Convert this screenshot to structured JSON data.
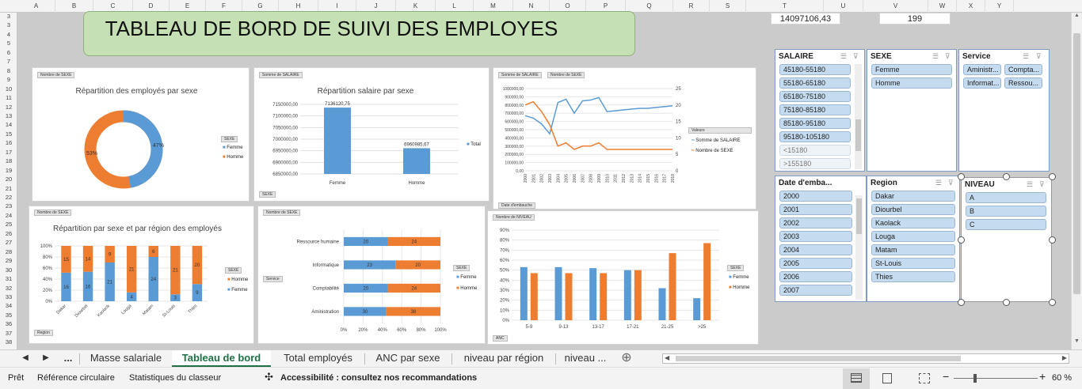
{
  "columns": [
    "A",
    "B",
    "C",
    "D",
    "E",
    "F",
    "G",
    "H",
    "I",
    "J",
    "K",
    "L",
    "M",
    "N",
    "O",
    "P",
    "Q",
    "R",
    "S",
    "T",
    "U",
    "V",
    "W",
    "X",
    "Y"
  ],
  "rows": [
    "3",
    "3",
    "4",
    "5",
    "6",
    "7",
    "8",
    "9",
    "10",
    "11",
    "12",
    "13",
    "14",
    "15",
    "16",
    "17",
    "18",
    "19",
    "20",
    "21",
    "22",
    "23",
    "24",
    "25",
    "26",
    "27",
    "28",
    "29",
    "30",
    "31",
    "32",
    "33",
    "34",
    "35",
    "36",
    "37",
    "38"
  ],
  "cell_values": {
    "t": "14097106,43",
    "v": "199"
  },
  "title": "TABLEAU DE BORD DE SUIVI DES EMPLOYES",
  "chart1": {
    "button": "Nombre de SEXE",
    "title": "Répartition des employés par sexe",
    "legend_title": "SEXE",
    "labels": {
      "femme": "Femme",
      "homme": "Homme"
    },
    "pct_femme": "47%",
    "pct_homme": "53%",
    "colors": {
      "femme": "#5b9bd5",
      "homme": "#ed7d31"
    }
  },
  "chart2": {
    "button": "Somme de SALAIRE",
    "title": "Répartition salaire par sexe",
    "yticks": [
      "7150000,00",
      "7100000,00",
      "7050000,00",
      "7000000,00",
      "6950000,00",
      "6900000,00",
      "6850000,00"
    ],
    "categories": [
      "Femme",
      "Homme"
    ],
    "values": [
      7136120.75,
      6960985.67
    ],
    "value_labels": [
      "7136120,75",
      "6960985,67"
    ],
    "ylim": [
      6850000,
      7150000
    ],
    "legend": "Total",
    "filter": "SEXE"
  },
  "chart3": {
    "buttons": [
      "Somme de SALAIRE",
      "Nombre de SEXE"
    ],
    "yticks_left": [
      "1000000,00",
      "900000,00",
      "800000,00",
      "700000,00",
      "600000,00",
      "500000,00",
      "400000,00",
      "300000,00",
      "200000,00",
      "100000,00",
      "0,00"
    ],
    "yticks_right": [
      "25",
      "20",
      "15",
      "10",
      "5",
      "0"
    ],
    "years": [
      "2000",
      "2001",
      "2002",
      "2003",
      "2004",
      "2005",
      "2006",
      "2007",
      "2008",
      "2009",
      "2010",
      "2011",
      "2012",
      "2013",
      "2014",
      "2015",
      "2016",
      "2017",
      "2018"
    ],
    "salaire": [
      670000,
      640000,
      570000,
      450000,
      830000,
      870000,
      700000,
      850000,
      860000,
      890000,
      720000,
      730000,
      740000,
      750000,
      760000,
      760000,
      770000,
      780000,
      790000
    ],
    "sexe": [
      20,
      21,
      18,
      14,
      7.5,
      8.5,
      6.5,
      7.5,
      7.5,
      8.5,
      6.5,
      6.5,
      6.5,
      6.5,
      6.5,
      6.5,
      6.5,
      6.5,
      6.5
    ],
    "legend_title": "Valeurs",
    "legend": [
      "Somme de SALAIRE",
      "Nombre de SEXE"
    ],
    "filter": "Date d'embauche"
  },
  "chart4": {
    "button": "Nombre de SEXE",
    "title": "Répartition par sexe et par région des employés",
    "yticks": [
      "100%",
      "80%",
      "60%",
      "40%",
      "20%",
      "0%"
    ],
    "regions": [
      "Dakar",
      "Diourbel",
      "Kaolack",
      "Louga",
      "Matam",
      "St-Louis",
      "Thies"
    ],
    "femme": [
      16,
      16,
      21,
      4,
      24,
      3,
      9
    ],
    "homme": [
      15,
      14,
      9,
      21,
      6,
      21,
      20
    ],
    "legend_title": "SEXE",
    "legend": [
      "Homme",
      "Femme"
    ],
    "filter": "Region"
  },
  "chart5": {
    "button": "Nombre de SEXE",
    "services": [
      "Ressource humaine",
      "Informatique",
      "Comptabilité",
      "Aministration"
    ],
    "femme": [
      20,
      23,
      20,
      30
    ],
    "homme": [
      24,
      20,
      24,
      38
    ],
    "xticks": [
      "0%",
      "20%",
      "40%",
      "60%",
      "80%",
      "100%"
    ],
    "filter": "Service",
    "legend_title": "SEXE",
    "legend": [
      "Femme",
      "Homme"
    ]
  },
  "chart6": {
    "button": "Nombre de NIVEAU",
    "yticks": [
      "90%",
      "80%",
      "70%",
      "60%",
      "50%",
      "40%",
      "30%",
      "20%",
      "10%",
      "0%"
    ],
    "categories": [
      "5-9",
      "9-13",
      "13-17",
      "17-21",
      "21-25",
      ">25"
    ],
    "femme": [
      53,
      53,
      52,
      50,
      32,
      22
    ],
    "homme": [
      47,
      47,
      47,
      50,
      67,
      77
    ],
    "filter": "ANC",
    "legend_title": "SEXE",
    "legend": [
      "Femme",
      "Homme"
    ]
  },
  "slicers": {
    "salaire": {
      "header": "SALAIRE",
      "items": [
        "45180-55180",
        "55180-65180",
        "65180-75180",
        "75180-85180",
        "85180-95180",
        "95180-105180",
        "<15180",
        ">155180"
      ]
    },
    "sexe": {
      "header": "SEXE",
      "items": [
        "Femme",
        "Homme"
      ]
    },
    "service": {
      "header": "Service",
      "items": [
        "Aministr...",
        "Compta...",
        "Informat...",
        "Ressou..."
      ]
    },
    "date": {
      "header": "Date d'emba...",
      "items": [
        "2000",
        "2001",
        "2002",
        "2003",
        "2004",
        "2005",
        "2006",
        "2007"
      ]
    },
    "region": {
      "header": "Region",
      "items": [
        "Dakar",
        "Diourbel",
        "Kaolack",
        "Louga",
        "Matam",
        "St-Louis",
        "Thies"
      ]
    },
    "niveau": {
      "header": "NIVEAU",
      "items": [
        "A",
        "B",
        "C"
      ]
    }
  },
  "tabs": {
    "more_left": "...",
    "items": [
      "Masse salariale",
      "Tableau de bord",
      "Total employés",
      "ANC par sexe",
      "niveau par région",
      "niveau ..."
    ]
  },
  "status": {
    "ready": "Prêt",
    "circular": "Référence circulaire",
    "stats": "Statistiques du classeur",
    "accessibility": "Accessibilité : consultez nos recommandations",
    "zoom": "60 %"
  }
}
